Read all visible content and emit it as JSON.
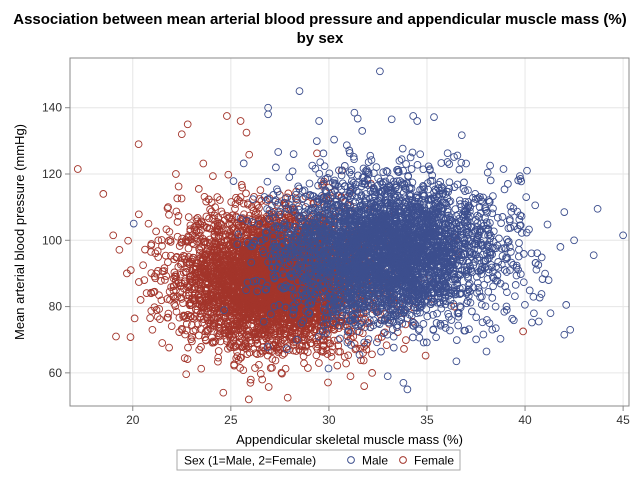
{
  "chart_data": {
    "type": "scatter",
    "title_line1": "Association between mean arterial blood pressure and appendicular muscle mass (%)",
    "title_line2": "by sex",
    "xlabel": "Appendicular skeletal muscle mass (%)",
    "ylabel": "Mean arterial blood pressure (mmHg)",
    "xlim": [
      16.8,
      45.3
    ],
    "ylim": [
      50,
      155
    ],
    "xticks": [
      20,
      25,
      30,
      35,
      40,
      45
    ],
    "yticks": [
      60,
      80,
      100,
      120,
      140
    ],
    "grid": true,
    "legend": {
      "title": "Sex (1=Male, 2=Female)",
      "placement": "bottom",
      "entries": [
        "Male",
        "Female"
      ]
    },
    "series": [
      {
        "name": "Male",
        "color": "#3d4f8e",
        "distribution": {
          "x_mean": 33.0,
          "x_sd": 2.7,
          "y_mean": 97,
          "y_sd": 10.5,
          "n": 3800
        },
        "outliers": [
          [
            32.6,
            151
          ],
          [
            28.5,
            145
          ],
          [
            26.9,
            140
          ],
          [
            26.9,
            138
          ],
          [
            31.3,
            138.5
          ],
          [
            33.2,
            136.5
          ],
          [
            34.3,
            137.5
          ],
          [
            34.5,
            136
          ],
          [
            29.5,
            136
          ],
          [
            31.7,
            133
          ],
          [
            40.1,
            121
          ],
          [
            43.7,
            109.5
          ],
          [
            45.0,
            101.5
          ],
          [
            42.5,
            100
          ],
          [
            41.8,
            98
          ],
          [
            42.0,
            108.5
          ],
          [
            43.5,
            95.5
          ],
          [
            41.2,
            88
          ],
          [
            42.1,
            80.5
          ],
          [
            42.3,
            73
          ],
          [
            42.0,
            71.5
          ],
          [
            41.3,
            78
          ],
          [
            40.7,
            75.5
          ],
          [
            38.5,
            80
          ],
          [
            36.5,
            63.5
          ],
          [
            34.0,
            55
          ],
          [
            33.8,
            57
          ],
          [
            33.0,
            59
          ],
          [
            27.3,
            122
          ],
          [
            28.2,
            126
          ],
          [
            38.9,
            121.5
          ]
        ]
      },
      {
        "name": "Female",
        "color": "#a3352b",
        "distribution": {
          "x_mean": 27.3,
          "x_sd": 2.4,
          "y_mean": 88,
          "y_sd": 10,
          "n": 4600
        },
        "outliers": [
          [
            17.2,
            121.5
          ],
          [
            18.5,
            114
          ],
          [
            19.0,
            101.5
          ],
          [
            19.7,
            90
          ],
          [
            19.9,
            91
          ],
          [
            20.4,
            82
          ],
          [
            20.3,
            129
          ],
          [
            20.8,
            105
          ],
          [
            21.0,
            73
          ],
          [
            21.3,
            100
          ],
          [
            21.8,
            110
          ],
          [
            22.5,
            132
          ],
          [
            22.8,
            135
          ],
          [
            22.2,
            120
          ],
          [
            24.8,
            137.5
          ],
          [
            25.5,
            136
          ],
          [
            25.8,
            132.5
          ],
          [
            27.9,
            52.5
          ],
          [
            26.0,
            57
          ],
          [
            26.6,
            58
          ],
          [
            31.1,
            59
          ],
          [
            31.8,
            56
          ],
          [
            32.2,
            60
          ],
          [
            36.4,
            80
          ],
          [
            39.9,
            72.5
          ],
          [
            21.5,
            69
          ]
        ]
      }
    ]
  }
}
